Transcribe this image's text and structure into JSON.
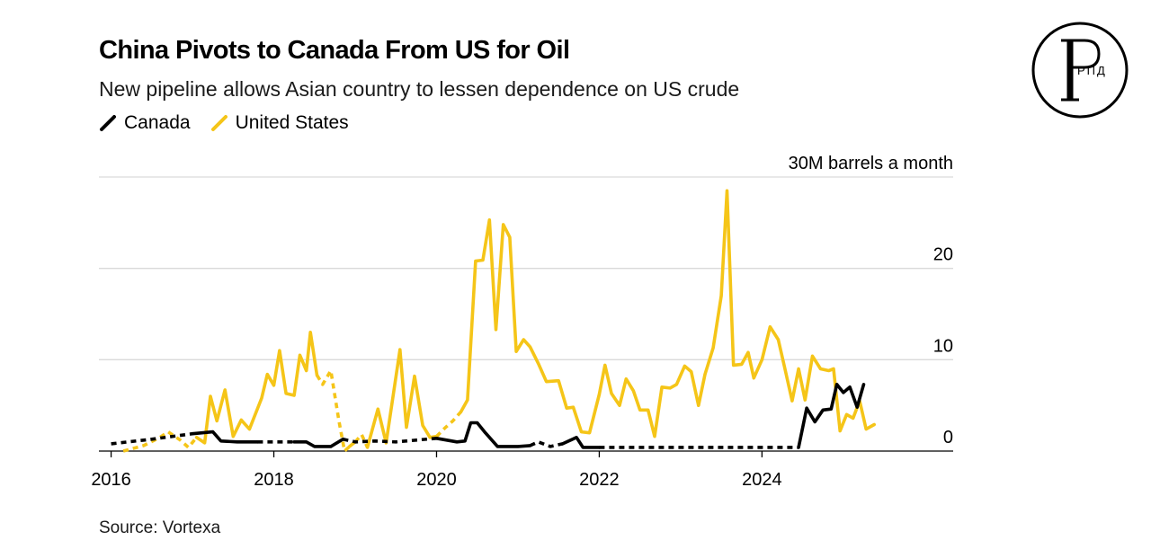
{
  "title": "China Pivots to Canada From US for Oil",
  "subtitle": "New pipeline allows Asian country to lessen dependence on US crude",
  "source": "Source: Vortexa",
  "logo_text": "РПД",
  "colors": {
    "canada": "#000000",
    "united_states": "#f5c518",
    "grid": "#d9d9d9"
  },
  "chart_data": {
    "type": "line",
    "title": "China Pivots to Canada From US for Oil",
    "subtitle": "New pipeline allows Asian country to lessen dependence on US crude",
    "unit_label": "30M barrels a month",
    "xlabel": "",
    "ylabel": "",
    "xlim": [
      2015.85,
      2026.35
    ],
    "ylim": [
      0,
      30
    ],
    "x_ticks": [
      2016,
      2018,
      2020,
      2022,
      2024
    ],
    "x_tick_labels": [
      "2016",
      "2018",
      "2020",
      "2022",
      "2024"
    ],
    "y_ticks": [
      0,
      10,
      20,
      30
    ],
    "y_tick_labels": [
      "0",
      "10",
      "20",
      "30M barrels a month"
    ],
    "grid": true,
    "legend_position": "top-left",
    "series": [
      {
        "name": "Canada",
        "color": "#000000",
        "dashed_ranges": [
          [
            2016.0,
            2017.1
          ],
          [
            2017.8,
            2018.3
          ],
          [
            2018.9,
            2020.1
          ],
          [
            2021.2,
            2021.5
          ],
          [
            2021.95,
            2024.45
          ]
        ],
        "points": [
          [
            2016.0,
            0.8
          ],
          [
            2016.5,
            1.3
          ],
          [
            2017.0,
            1.9
          ],
          [
            2017.25,
            2.1
          ],
          [
            2017.35,
            1.1
          ],
          [
            2017.55,
            1.0
          ],
          [
            2017.8,
            1.0
          ],
          [
            2018.0,
            1.0
          ],
          [
            2018.25,
            1.0
          ],
          [
            2018.4,
            1.0
          ],
          [
            2018.5,
            0.5
          ],
          [
            2018.7,
            0.5
          ],
          [
            2018.85,
            1.3
          ],
          [
            2019.0,
            1.0
          ],
          [
            2019.25,
            1.1
          ],
          [
            2019.5,
            1.0
          ],
          [
            2019.75,
            1.2
          ],
          [
            2020.0,
            1.4
          ],
          [
            2020.25,
            1.0
          ],
          [
            2020.35,
            1.1
          ],
          [
            2020.42,
            3.1
          ],
          [
            2020.5,
            3.1
          ],
          [
            2020.6,
            2.0
          ],
          [
            2020.75,
            0.5
          ],
          [
            2021.0,
            0.5
          ],
          [
            2021.15,
            0.6
          ],
          [
            2021.25,
            1.0
          ],
          [
            2021.4,
            0.5
          ],
          [
            2021.55,
            0.8
          ],
          [
            2021.72,
            1.5
          ],
          [
            2021.8,
            0.4
          ],
          [
            2022.0,
            0.4
          ],
          [
            2022.5,
            0.4
          ],
          [
            2023.0,
            0.4
          ],
          [
            2023.5,
            0.4
          ],
          [
            2024.0,
            0.4
          ],
          [
            2024.45,
            0.4
          ],
          [
            2024.55,
            4.7
          ],
          [
            2024.65,
            3.2
          ],
          [
            2024.75,
            4.5
          ],
          [
            2024.85,
            4.6
          ],
          [
            2024.92,
            7.3
          ],
          [
            2025.0,
            6.4
          ],
          [
            2025.08,
            7.0
          ],
          [
            2025.17,
            4.8
          ],
          [
            2025.25,
            7.3
          ]
        ]
      },
      {
        "name": "United States",
        "color": "#f5c518",
        "dashed_ranges": [
          [
            2016.15,
            2017.0
          ],
          [
            2018.55,
            2018.95
          ],
          [
            2019.0,
            2019.15
          ],
          [
            2020.0,
            2020.3
          ]
        ],
        "points": [
          [
            2016.15,
            0.0
          ],
          [
            2016.4,
            0.6
          ],
          [
            2016.6,
            1.5
          ],
          [
            2016.7,
            2.1
          ],
          [
            2016.85,
            1.2
          ],
          [
            2016.95,
            0.4
          ],
          [
            2017.05,
            1.5
          ],
          [
            2017.15,
            0.9
          ],
          [
            2017.22,
            6.0
          ],
          [
            2017.3,
            3.3
          ],
          [
            2017.4,
            6.7
          ],
          [
            2017.5,
            1.6
          ],
          [
            2017.6,
            3.4
          ],
          [
            2017.7,
            2.4
          ],
          [
            2017.85,
            5.8
          ],
          [
            2017.92,
            8.4
          ],
          [
            2018.0,
            7.2
          ],
          [
            2018.07,
            11.0
          ],
          [
            2018.15,
            6.3
          ],
          [
            2018.25,
            6.1
          ],
          [
            2018.32,
            10.5
          ],
          [
            2018.4,
            8.8
          ],
          [
            2018.45,
            13.0
          ],
          [
            2018.53,
            8.3
          ],
          [
            2018.6,
            7.3
          ],
          [
            2018.7,
            8.8
          ],
          [
            2018.8,
            3.3
          ],
          [
            2018.87,
            0.0
          ],
          [
            2018.93,
            0.5
          ],
          [
            2019.0,
            1.0
          ],
          [
            2019.08,
            1.8
          ],
          [
            2019.15,
            0.4
          ],
          [
            2019.28,
            4.6
          ],
          [
            2019.38,
            0.9
          ],
          [
            2019.55,
            11.1
          ],
          [
            2019.63,
            2.6
          ],
          [
            2019.73,
            8.2
          ],
          [
            2019.83,
            2.8
          ],
          [
            2019.92,
            1.5
          ],
          [
            2020.0,
            1.6
          ],
          [
            2020.1,
            2.5
          ],
          [
            2020.2,
            3.3
          ],
          [
            2020.3,
            4.3
          ],
          [
            2020.38,
            5.6
          ],
          [
            2020.48,
            20.8
          ],
          [
            2020.57,
            20.9
          ],
          [
            2020.65,
            25.3
          ],
          [
            2020.73,
            13.3
          ],
          [
            2020.82,
            24.8
          ],
          [
            2020.9,
            23.4
          ],
          [
            2020.98,
            10.9
          ],
          [
            2021.07,
            12.2
          ],
          [
            2021.15,
            11.4
          ],
          [
            2021.25,
            9.6
          ],
          [
            2021.35,
            7.6
          ],
          [
            2021.5,
            7.7
          ],
          [
            2021.6,
            4.7
          ],
          [
            2021.68,
            4.8
          ],
          [
            2021.78,
            2.1
          ],
          [
            2021.88,
            2.0
          ],
          [
            2022.0,
            6.2
          ],
          [
            2022.07,
            9.4
          ],
          [
            2022.15,
            6.3
          ],
          [
            2022.25,
            5.0
          ],
          [
            2022.33,
            7.9
          ],
          [
            2022.42,
            6.6
          ],
          [
            2022.5,
            4.5
          ],
          [
            2022.6,
            4.5
          ],
          [
            2022.68,
            1.6
          ],
          [
            2022.77,
            7.0
          ],
          [
            2022.87,
            6.9
          ],
          [
            2022.95,
            7.3
          ],
          [
            2023.05,
            9.3
          ],
          [
            2023.13,
            8.7
          ],
          [
            2023.22,
            5.0
          ],
          [
            2023.3,
            8.4
          ],
          [
            2023.4,
            11.3
          ],
          [
            2023.5,
            17.0
          ],
          [
            2023.57,
            28.5
          ],
          [
            2023.65,
            9.4
          ],
          [
            2023.75,
            9.5
          ],
          [
            2023.83,
            10.8
          ],
          [
            2023.9,
            8.0
          ],
          [
            2024.0,
            10.0
          ],
          [
            2024.1,
            13.6
          ],
          [
            2024.2,
            12.2
          ],
          [
            2024.28,
            9.1
          ],
          [
            2024.37,
            5.5
          ],
          [
            2024.45,
            9.0
          ],
          [
            2024.53,
            5.6
          ],
          [
            2024.62,
            10.4
          ],
          [
            2024.72,
            9.0
          ],
          [
            2024.82,
            8.8
          ],
          [
            2024.88,
            9.0
          ],
          [
            2024.96,
            2.2
          ],
          [
            2025.04,
            4.0
          ],
          [
            2025.12,
            3.6
          ],
          [
            2025.2,
            5.5
          ],
          [
            2025.28,
            2.4
          ],
          [
            2025.38,
            2.9
          ]
        ]
      }
    ]
  }
}
